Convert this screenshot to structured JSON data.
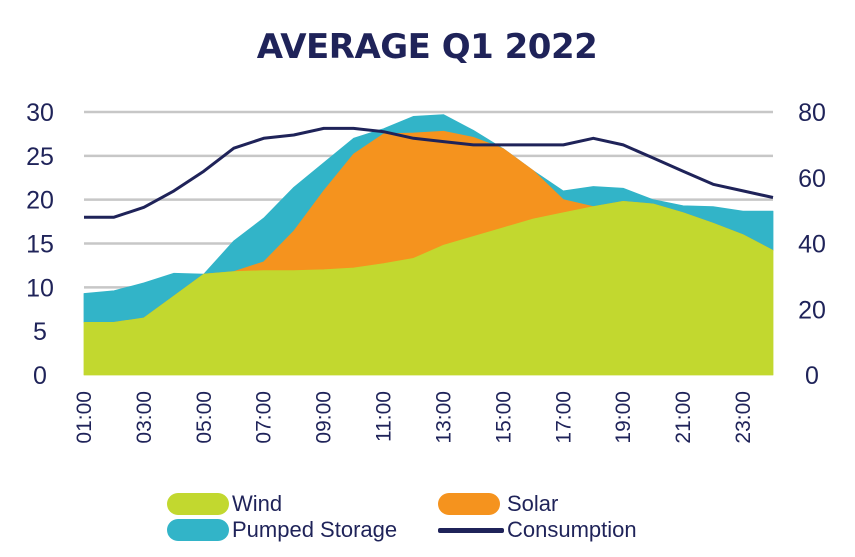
{
  "chart_data": {
    "type": "area",
    "title": "AVERAGE Q1 2022",
    "x": [
      "01:00",
      "02:00",
      "03:00",
      "04:00",
      "05:00",
      "06:00",
      "07:00",
      "08:00",
      "09:00",
      "10:00",
      "11:00",
      "12:00",
      "13:00",
      "14:00",
      "15:00",
      "16:00",
      "17:00",
      "18:00",
      "19:00",
      "20:00",
      "21:00",
      "22:00",
      "23:00",
      "24:00"
    ],
    "x_tick_labels": [
      "01:00",
      "03:00",
      "05:00",
      "07:00",
      "09:00",
      "11:00",
      "13:00",
      "15:00",
      "17:00",
      "19:00",
      "21:00",
      "23:00"
    ],
    "y_left": {
      "ylim": [
        0,
        30
      ],
      "ticks": [
        "0",
        "5",
        "10",
        "15",
        "20",
        "25",
        "30"
      ]
    },
    "y_right": {
      "ylim": [
        0,
        80
      ],
      "ticks": [
        "0",
        "20",
        "40",
        "60",
        "80"
      ]
    },
    "grid": true,
    "legend_position": "bottom",
    "series": [
      {
        "name": "Wind",
        "type": "stacked-area",
        "axis": "left",
        "color": "#c2d82f",
        "values": [
          6.0,
          6.0,
          6.5,
          9.0,
          11.5,
          11.8,
          11.9,
          11.9,
          12.0,
          12.2,
          12.7,
          13.3,
          14.8,
          15.8,
          16.8,
          17.8,
          18.5,
          19.2,
          19.8,
          19.5,
          18.5,
          17.3,
          16.0,
          14.2
        ]
      },
      {
        "name": "Solar",
        "type": "stacked-area",
        "axis": "left",
        "color": "#f5931e",
        "values": [
          0,
          0,
          0,
          0,
          0,
          0,
          1.0,
          4.5,
          9.0,
          13.0,
          14.8,
          14.3,
          13.0,
          11.3,
          9.0,
          5.5,
          1.5,
          0,
          0,
          0,
          0,
          0,
          0,
          0
        ]
      },
      {
        "name": "Pumped Storage",
        "type": "stacked-area",
        "axis": "left",
        "color": "#32b4c8",
        "values": [
          3.3,
          3.6,
          4.0,
          2.6,
          0.0,
          3.5,
          5.0,
          5.0,
          3.2,
          1.8,
          0.6,
          1.9,
          1.9,
          0.8,
          0.0,
          0.0,
          1.0,
          2.3,
          1.5,
          0.5,
          0.8,
          1.9,
          2.7,
          4.5
        ]
      },
      {
        "name": "Consumption",
        "type": "line",
        "axis": "right",
        "color": "#1f2359",
        "values": [
          48,
          48,
          51,
          56,
          62,
          69,
          72,
          73,
          75,
          75,
          74,
          72,
          71,
          70,
          70,
          70,
          70,
          72,
          70,
          66,
          62,
          58,
          56,
          54
        ]
      }
    ]
  }
}
